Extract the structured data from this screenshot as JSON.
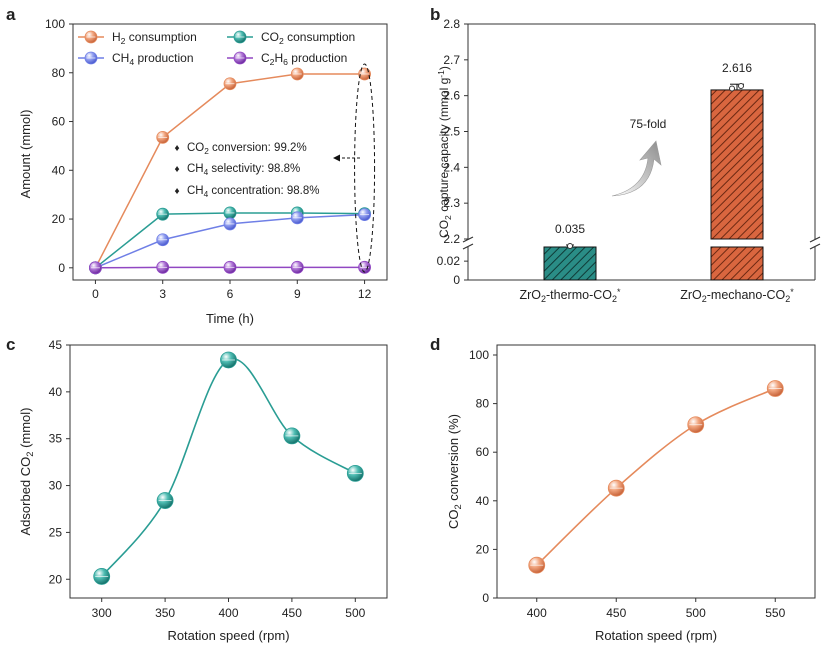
{
  "panels": {
    "a": "a",
    "b": "b",
    "c": "c",
    "d": "d"
  },
  "colors": {
    "h2": "#e58a5c",
    "co2": "#2a9d94",
    "ch4": "#6f7fe6",
    "c2h6": "#9147c2",
    "annot": "#c0399a",
    "teal_bar": "#2a8d86",
    "orange_bar": "#d9663f"
  },
  "chart_data": [
    {
      "id": "a",
      "type": "line",
      "xlabel": "Time (h)",
      "ylabel": "Amount (mmol)",
      "x": [
        0,
        3,
        6,
        9,
        12
      ],
      "xlim": [
        -1,
        13
      ],
      "ylim": [
        -5,
        100
      ],
      "yticks": [
        0,
        20,
        40,
        60,
        80,
        100
      ],
      "series": [
        {
          "key": "h2",
          "name": "H2 consumption",
          "values": [
            0,
            53.5,
            75.5,
            79.5,
            79.5
          ]
        },
        {
          "key": "co2",
          "name": "CO2 consumption",
          "values": [
            0,
            22,
            22.5,
            22.5,
            22.2
          ]
        },
        {
          "key": "ch4",
          "name": "CH4 production",
          "values": [
            0,
            11.5,
            18,
            20.5,
            21.8
          ]
        },
        {
          "key": "c2h6",
          "name": "C2H6 production",
          "values": [
            0,
            0.2,
            0.2,
            0.2,
            0.2
          ]
        }
      ],
      "legend": [
        {
          "key": "h2",
          "pre": "H",
          "sub": "2",
          "post": " consumption"
        },
        {
          "key": "co2",
          "pre": "CO",
          "sub": "2",
          "post": " consumption"
        },
        {
          "key": "ch4",
          "pre": "CH",
          "sub": "4",
          "post": " production"
        },
        {
          "key": "c2h6",
          "pre": "C",
          "sub": "2",
          "mid": "H",
          "sub2": "6",
          "post": " production"
        }
      ],
      "legend_position": "top",
      "annotations": [
        {
          "pre": "CO",
          "sub": "2",
          "post": " conversion: 99.2%"
        },
        {
          "pre": "CH",
          "sub": "4",
          "post": " selectivity: 98.8%"
        },
        {
          "pre": "CH",
          "sub": "4",
          "post": " concentration: 98.8%"
        }
      ]
    },
    {
      "id": "b",
      "type": "bar",
      "categories": [
        {
          "pre": "ZrO",
          "sub": "2",
          "post": "-thermo-CO",
          "sub2": "2",
          "post2": "*"
        },
        {
          "pre": "ZrO",
          "sub": "2",
          "post": "-mechano-CO",
          "sub2": "2",
          "post2": "*"
        }
      ],
      "values": [
        0.035,
        2.616
      ],
      "value_labels": [
        "0.035",
        "2.616"
      ],
      "ylabel": {
        "pre": "CO",
        "sub": "2",
        "mid": " capture capacity (mmol g",
        "sup": "-1",
        "post": ")"
      },
      "yticks_lower": [
        "0",
        "0.02"
      ],
      "yticks_upper": [
        "2.2",
        "2.3",
        "2.4",
        "2.5",
        "2.6",
        "2.7",
        "2.8"
      ],
      "ylim_lower": [
        0,
        0.035
      ],
      "ylim_upper": [
        2.2,
        2.8
      ],
      "axis_break": true,
      "annotation": "75-fold"
    },
    {
      "id": "c",
      "type": "line",
      "xlabel": "Rotation speed (rpm)",
      "ylabel": {
        "pre": "Adsorbed CO",
        "sub": "2",
        "post": " (mmol)"
      },
      "x": [
        300,
        350,
        400,
        450,
        500
      ],
      "values": [
        20.3,
        28.4,
        43.4,
        35.3,
        31.3
      ],
      "xlim": [
        275,
        525
      ],
      "ylim": [
        18,
        45
      ],
      "yticks": [
        20,
        25,
        30,
        35,
        40,
        45
      ]
    },
    {
      "id": "d",
      "type": "line",
      "xlabel": "Rotation speed (rpm)",
      "ylabel": {
        "pre": "CO",
        "sub": "2",
        "post": " conversion (%)"
      },
      "x": [
        400,
        450,
        500,
        550
      ],
      "values": [
        13.5,
        45.2,
        71.3,
        86.2
      ],
      "xlim": [
        375,
        575
      ],
      "ylim": [
        0,
        100
      ],
      "yticks": [
        0,
        20,
        40,
        60,
        80,
        100
      ]
    }
  ]
}
